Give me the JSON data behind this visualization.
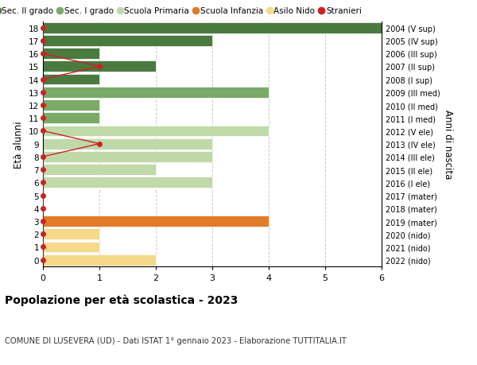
{
  "ages": [
    18,
    17,
    16,
    15,
    14,
    13,
    12,
    11,
    10,
    9,
    8,
    7,
    6,
    5,
    4,
    3,
    2,
    1,
    0
  ],
  "right_labels": [
    "2004 (V sup)",
    "2005 (IV sup)",
    "2006 (III sup)",
    "2007 (II sup)",
    "2008 (I sup)",
    "2009 (III med)",
    "2010 (II med)",
    "2011 (I med)",
    "2012 (V ele)",
    "2013 (IV ele)",
    "2014 (III ele)",
    "2015 (II ele)",
    "2016 (I ele)",
    "2017 (mater)",
    "2018 (mater)",
    "2019 (mater)",
    "2020 (nido)",
    "2021 (nido)",
    "2022 (nido)"
  ],
  "bar_values": [
    6,
    3,
    1,
    2,
    1,
    4,
    1,
    1,
    4,
    3,
    3,
    2,
    3,
    0,
    0,
    4,
    1,
    1,
    2
  ],
  "bar_colors": [
    "#4a7a40",
    "#4a7a40",
    "#4a7a40",
    "#4a7a40",
    "#4a7a40",
    "#7aaa68",
    "#7aaa68",
    "#7aaa68",
    "#c0d9a8",
    "#c0d9a8",
    "#c0d9a8",
    "#c0d9a8",
    "#c0d9a8",
    "#e07b2a",
    "#e07b2a",
    "#e07b2a",
    "#f5d98b",
    "#f5d98b",
    "#f5d98b"
  ],
  "stranieri_x_by_age": {
    "18": 0,
    "17": 0,
    "16": 0,
    "15": 1,
    "14": 0,
    "13": 0,
    "12": 0,
    "11": 0,
    "10": 0,
    "9": 1,
    "8": 0,
    "7": 0,
    "6": 0,
    "5": 0,
    "4": 0,
    "3": 0,
    "2": 0,
    "1": 0,
    "0": 0
  },
  "legend_labels": [
    "Sec. II grado",
    "Sec. I grado",
    "Scuola Primaria",
    "Scuola Infanzia",
    "Asilo Nido",
    "Stranieri"
  ],
  "legend_colors": [
    "#4a7a40",
    "#7aaa68",
    "#c0d9a8",
    "#e07b2a",
    "#f5d98b",
    "#cc2222"
  ],
  "ylabel": "Età alunni",
  "ylabel_right": "Anni di nascita",
  "title": "Popolazione per età scolastica - 2023",
  "subtitle": "COMUNE DI LUSEVERA (UD) - Dati ISTAT 1° gennaio 2023 - Elaborazione TUTTITALIA.IT",
  "xlim": [
    0,
    6
  ],
  "background_color": "#ffffff",
  "grid_color": "#cccccc"
}
